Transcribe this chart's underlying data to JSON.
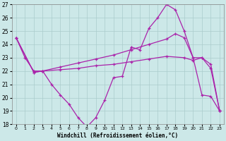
{
  "xlabel": "Windchill (Refroidissement éolien,°C)",
  "x_min": 0,
  "x_max": 23,
  "y_min": 18,
  "y_max": 27,
  "background_color": "#cce8e8",
  "grid_color": "#aacccc",
  "line_color": "#aa22aa",
  "line1_x": [
    0,
    1,
    2,
    3,
    4,
    5,
    6,
    7,
    8,
    9,
    10,
    11,
    12,
    13,
    14,
    15,
    16,
    17,
    18,
    19,
    20,
    21,
    22,
    23
  ],
  "line1_y": [
    24.5,
    23.0,
    22.0,
    22.0,
    21.0,
    20.2,
    19.5,
    18.5,
    17.8,
    18.5,
    19.8,
    21.5,
    21.6,
    23.8,
    23.6,
    25.2,
    26.0,
    27.0,
    26.6,
    25.0,
    23.0,
    20.2,
    20.1,
    19.0
  ],
  "line2_x": [
    0,
    2,
    3,
    5,
    7,
    9,
    11,
    13,
    15,
    17,
    18,
    19,
    20,
    21,
    22,
    23
  ],
  "line2_y": [
    24.5,
    21.9,
    22.0,
    22.3,
    22.6,
    22.9,
    23.2,
    23.6,
    24.0,
    24.4,
    24.8,
    24.5,
    23.0,
    23.0,
    22.5,
    19.0
  ],
  "line3_x": [
    0,
    2,
    3,
    5,
    7,
    9,
    11,
    13,
    15,
    17,
    19,
    20,
    21,
    22,
    23
  ],
  "line3_y": [
    24.5,
    21.9,
    22.0,
    22.1,
    22.2,
    22.4,
    22.5,
    22.7,
    22.9,
    23.1,
    23.0,
    22.8,
    23.0,
    22.2,
    19.0
  ]
}
